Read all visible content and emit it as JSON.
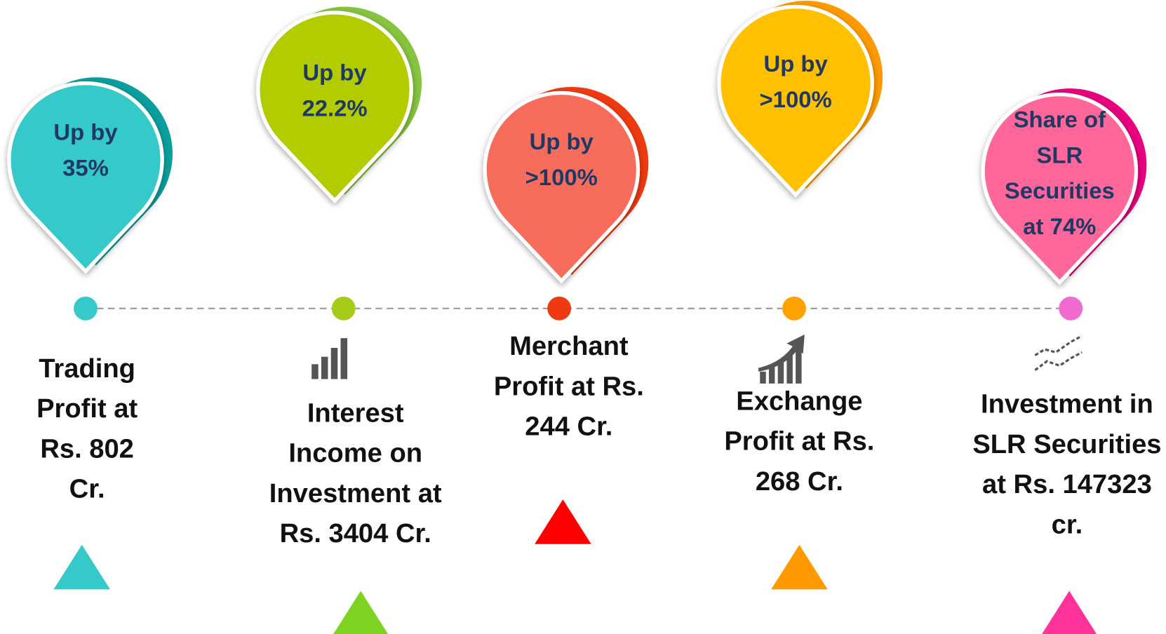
{
  "items": [
    {
      "pin_lines": [
        "Up by",
        "35%"
      ],
      "label_lines": [
        "Trading",
        "Profit at",
        "Rs. 802",
        "Cr."
      ],
      "color": "#35c9c9",
      "shade": "#0a9e9e",
      "dot": "#35c9c9",
      "marker": "#35c9c9"
    },
    {
      "pin_lines": [
        "Up by",
        "22.2%"
      ],
      "label_lines": [
        "Interest",
        "Income on",
        "Investment at",
        "Rs. 3404 Cr."
      ],
      "color": "#b2cc00",
      "shade": "#86c440",
      "dot": "#a6cc1a",
      "marker": "#7ed321"
    },
    {
      "pin_lines": [
        "Up by",
        ">100%"
      ],
      "label_lines": [
        "Merchant",
        "Profit at Rs.",
        "244 Cr."
      ],
      "color": "#f86c5c",
      "shade": "#ee3a10",
      "dot": "#ee3a10",
      "marker": "#ff0000"
    },
    {
      "pin_lines": [
        "Up by",
        ">100%"
      ],
      "label_lines": [
        "Exchange",
        "Profit at Rs.",
        "268 Cr."
      ],
      "color": "#ffc000",
      "shade": "#ff9a00",
      "dot": "#ffa200",
      "marker": "#ff9900"
    },
    {
      "pin_lines": [
        "Share of",
        "SLR",
        "Securities",
        "at 74%"
      ],
      "label_lines": [
        "Investment in",
        "SLR Securities",
        "at Rs. 147323",
        "cr."
      ],
      "color": "#ff6699",
      "shade": "#e8007e",
      "dot": "#f06ad0",
      "marker": "#ff3399"
    }
  ]
}
